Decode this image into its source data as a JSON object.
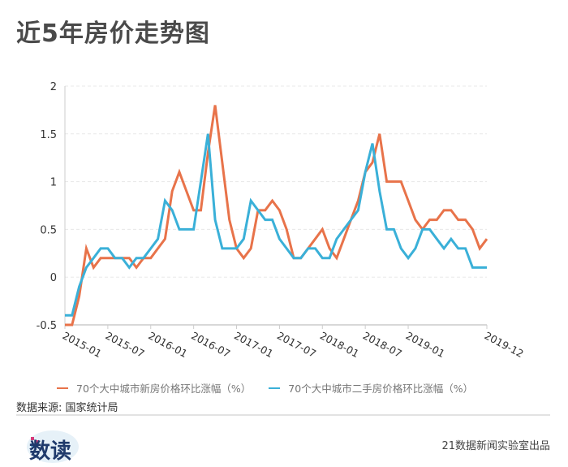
{
  "title": "近5年房价走势图",
  "legend": {
    "new": "70个大中城市新房价格环比涨幅（%）",
    "used": "70个大中城市二手房价格环比涨幅（%）"
  },
  "source": "数据来源: 国家统计局",
  "logo": "数读",
  "credit": "21数据新闻实验室出品",
  "colors": {
    "new": "#E8734A",
    "used": "#3AB0D8",
    "grid": "#e8e8e8",
    "axis": "#cccccc"
  },
  "chart_data": {
    "type": "line",
    "title": "近5年房价走势图",
    "xlabel": "",
    "ylabel": "",
    "ylim": [
      -0.5,
      2
    ],
    "yticks": [
      -0.5,
      0,
      0.5,
      1,
      1.5,
      2
    ],
    "xtick_labels": [
      "2015-01",
      "2015-07",
      "2016-01",
      "2016-07",
      "2017-01",
      "2017-07",
      "2018-01",
      "2018-07",
      "2019-01",
      "2019-12"
    ],
    "xtick_index": [
      0,
      6,
      12,
      18,
      24,
      30,
      36,
      42,
      48,
      59
    ],
    "grid": true,
    "legend_position": "bottom",
    "x_start": "2015-01",
    "x_end": "2019-12",
    "series": [
      {
        "name": "70个大中城市新房价格环比涨幅（%）",
        "color": "#E8734A",
        "values": [
          -0.5,
          -0.5,
          -0.2,
          0.3,
          0.1,
          0.2,
          0.2,
          0.2,
          0.2,
          0.2,
          0.1,
          0.2,
          0.2,
          0.3,
          0.4,
          0.9,
          1.1,
          0.9,
          0.7,
          0.7,
          1.3,
          1.8,
          1.2,
          0.6,
          0.3,
          0.2,
          0.3,
          0.7,
          0.7,
          0.8,
          0.7,
          0.5,
          0.2,
          0.2,
          0.3,
          0.4,
          0.5,
          0.3,
          0.2,
          0.4,
          0.6,
          0.8,
          1.1,
          1.2,
          1.5,
          1.0,
          1.0,
          1.0,
          0.8,
          0.6,
          0.5,
          0.6,
          0.6,
          0.7,
          0.7,
          0.6,
          0.6,
          0.5,
          0.3,
          0.4
        ]
      },
      {
        "name": "70个大中城市二手房价格环比涨幅（%）",
        "color": "#3AB0D8",
        "values": [
          -0.4,
          -0.4,
          -0.1,
          0.1,
          0.2,
          0.3,
          0.3,
          0.2,
          0.2,
          0.1,
          0.2,
          0.2,
          0.3,
          0.4,
          0.8,
          0.7,
          0.5,
          0.5,
          0.5,
          1.0,
          1.5,
          0.6,
          0.3,
          0.3,
          0.3,
          0.4,
          0.8,
          0.7,
          0.6,
          0.6,
          0.4,
          0.3,
          0.2,
          0.2,
          0.3,
          0.3,
          0.2,
          0.2,
          0.4,
          0.5,
          0.6,
          0.7,
          1.1,
          1.4,
          0.9,
          0.5,
          0.5,
          0.3,
          0.2,
          0.3,
          0.5,
          0.5,
          0.4,
          0.3,
          0.4,
          0.3,
          0.3,
          0.1,
          0.1,
          0.1
        ]
      }
    ]
  }
}
